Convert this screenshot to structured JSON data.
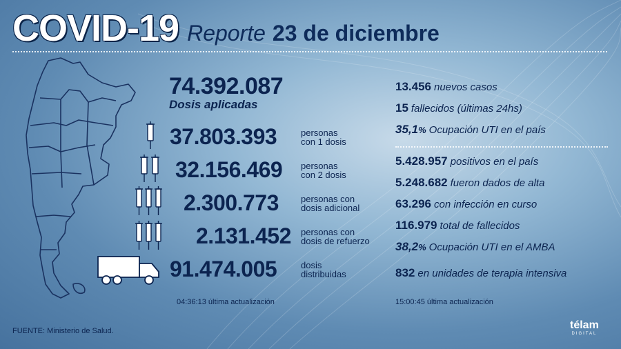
{
  "header": {
    "title": "COVID-19",
    "report_word": "Reporte",
    "date": "23 de diciembre"
  },
  "vaccination": {
    "total_value": "74.392.087",
    "total_label": "Dosis aplicadas",
    "rows": [
      {
        "value": "37.803.393",
        "line1": "personas",
        "line2": "con 1 dosis",
        "icon": "single-syringe-icon"
      },
      {
        "value": "32.156.469",
        "line1": "personas",
        "line2": "con 2 dosis",
        "icon": "double-syringe-icon"
      },
      {
        "value": "2.300.773",
        "line1": "personas con",
        "line2": "dosis adicional",
        "icon": "triple-syringe-icon"
      },
      {
        "value": "2.131.452",
        "line1": "personas con",
        "line2": "dosis de refuerzo",
        "icon": "triple-syringe-icon"
      },
      {
        "value": "91.474.005",
        "line1": "dosis",
        "line2": "distribuidas",
        "icon": "truck-icon"
      }
    ],
    "updated_time": "04:36:13",
    "updated_label": "última actualización"
  },
  "cases_daily": [
    {
      "num": "13.456",
      "text": "nuevos casos"
    },
    {
      "num": "15",
      "text": "fallecidos (últimas 24hs)"
    },
    {
      "num": "35,1",
      "pct": "%",
      "text": "Ocupación UTI en el país"
    }
  ],
  "cases_total": [
    {
      "num": "5.428.957",
      "text": "positivos en el país"
    },
    {
      "num": "5.248.682",
      "text": "fueron dados de alta"
    },
    {
      "num": "63.296",
      "text": "con infección en curso"
    },
    {
      "num": "116.979",
      "text": "total de fallecidos"
    },
    {
      "num": "38,2",
      "pct": "%",
      "text": "Ocupación UTI en el AMBA"
    },
    {
      "num": "832",
      "text": "en unidades de terapia intensiva"
    }
  ],
  "cases_updated": {
    "time": "15:00:45",
    "label": "última actualización"
  },
  "footer": {
    "source": "FUENTE: Ministerio de Salud.",
    "logo_text": "télam",
    "logo_sub": "DIGITAL"
  }
}
